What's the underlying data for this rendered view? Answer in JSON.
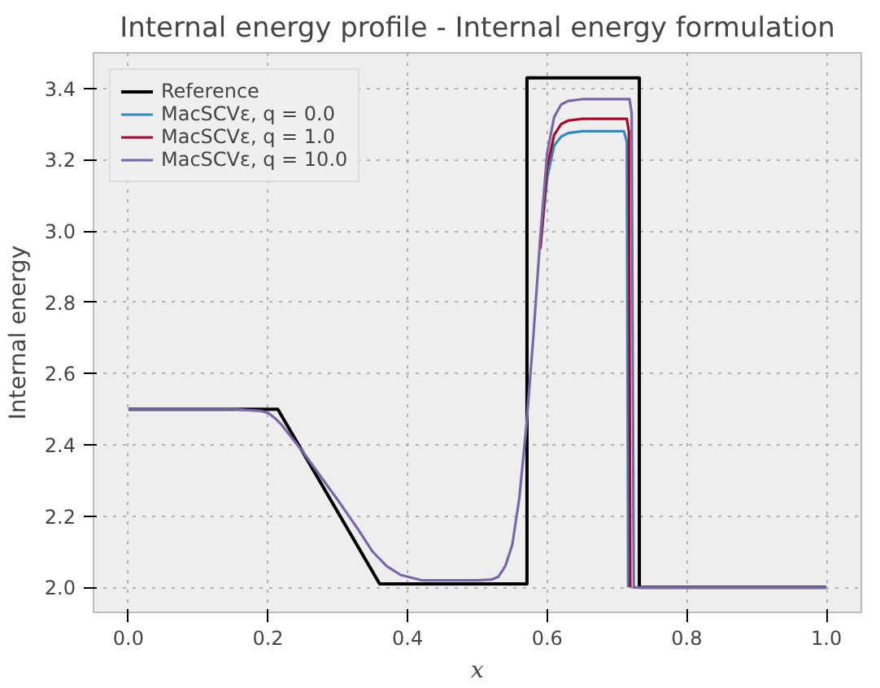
{
  "chart_data": {
    "type": "line",
    "title": "Internal energy profile - Internal energy formulation",
    "xlabel": "x",
    "ylabel": "Internal energy",
    "xlim": [
      -0.05,
      1.05
    ],
    "ylim": [
      1.93,
      3.5
    ],
    "xticks": [
      {
        "value": 0.0,
        "label": "0.0"
      },
      {
        "value": 0.2,
        "label": "0.2"
      },
      {
        "value": 0.4,
        "label": "0.4"
      },
      {
        "value": 0.6,
        "label": "0.6"
      },
      {
        "value": 0.8,
        "label": "0.8"
      },
      {
        "value": 1.0,
        "label": "1.0"
      }
    ],
    "yticks": [
      {
        "value": 2.0,
        "label": "2.0"
      },
      {
        "value": 2.2,
        "label": "2.2"
      },
      {
        "value": 2.4,
        "label": "2.4"
      },
      {
        "value": 2.6,
        "label": "2.6"
      },
      {
        "value": 2.8,
        "label": "2.8"
      },
      {
        "value": 3.0,
        "label": "3.0"
      },
      {
        "value": 3.2,
        "label": "3.2"
      },
      {
        "value": 3.4,
        "label": "3.4"
      }
    ],
    "grid": true,
    "legend": "top left",
    "line_style": "solid",
    "series": [
      {
        "name": "Reference",
        "color": "#000000",
        "x": [
          0,
          0.214,
          0.36,
          0.571,
          0.571,
          0.732,
          0.732,
          1.0
        ],
        "values": [
          2.5,
          2.5,
          2.01,
          2.01,
          3.43,
          3.43,
          2.0,
          2.0
        ]
      },
      {
        "name": "MacSCVε, q = 0.0",
        "color": "#348abd",
        "x": [
          0.59,
          0.6,
          0.61,
          0.62,
          0.63,
          0.65,
          0.71,
          0.714,
          0.716
        ],
        "values": [
          2.95,
          3.15,
          3.24,
          3.265,
          3.275,
          3.28,
          3.28,
          3.25,
          2.0
        ]
      },
      {
        "name": "MacSCVε, q = 1.0",
        "color": "#a60628",
        "x": [
          0.59,
          0.6,
          0.61,
          0.62,
          0.63,
          0.65,
          0.714,
          0.717,
          0.719
        ],
        "values": [
          2.95,
          3.18,
          3.27,
          3.3,
          3.31,
          3.315,
          3.315,
          3.28,
          2.0
        ]
      },
      {
        "name": "MacSCVε, q = 10.0",
        "color": "#7a68a6",
        "x": [
          0,
          0.15,
          0.19,
          0.2,
          0.21,
          0.22,
          0.25,
          0.3,
          0.33,
          0.35,
          0.37,
          0.39,
          0.42,
          0.5,
          0.52,
          0.53,
          0.54,
          0.55,
          0.56,
          0.57,
          0.58,
          0.59,
          0.6,
          0.61,
          0.62,
          0.63,
          0.65,
          0.718,
          0.721,
          0.724,
          1.0
        ],
        "values": [
          2.5,
          2.5,
          2.495,
          2.49,
          2.475,
          2.455,
          2.38,
          2.245,
          2.16,
          2.1,
          2.06,
          2.035,
          2.02,
          2.02,
          2.022,
          2.03,
          2.06,
          2.12,
          2.25,
          2.45,
          2.7,
          2.98,
          3.22,
          3.32,
          3.355,
          3.365,
          3.37,
          3.37,
          3.33,
          2.0,
          2.0
        ]
      }
    ]
  }
}
